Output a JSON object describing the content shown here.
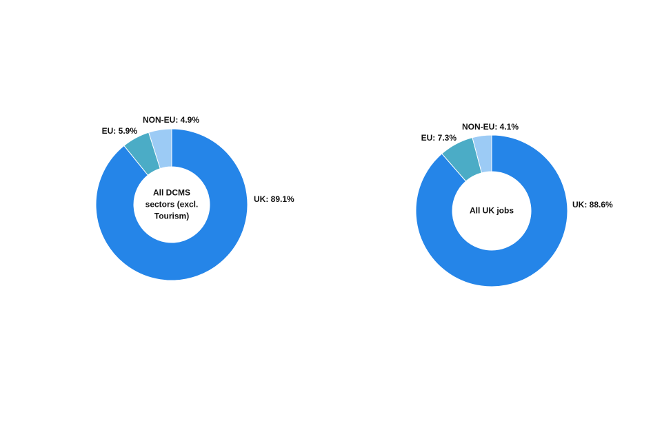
{
  "chart_data": [
    {
      "type": "pie",
      "center_label": "All DCMS sectors (excl. Tourism)",
      "values": [
        89.1,
        5.9,
        4.9
      ],
      "value_labels": [
        "UK: 89.1%",
        "EU: 5.9%",
        "NON-EU: 4.9%"
      ],
      "colors": [
        "#2585e8",
        "#4bacc6",
        "#9ccbf5"
      ]
    },
    {
      "type": "pie",
      "center_label": "All UK jobs",
      "values": [
        88.6,
        7.3,
        4.1
      ],
      "value_labels": [
        "UK: 88.6%",
        "EU: 7.3%",
        "NON-EU: 4.1%"
      ],
      "colors": [
        "#2585e8",
        "#4bacc6",
        "#9ccbf5"
      ]
    }
  ]
}
